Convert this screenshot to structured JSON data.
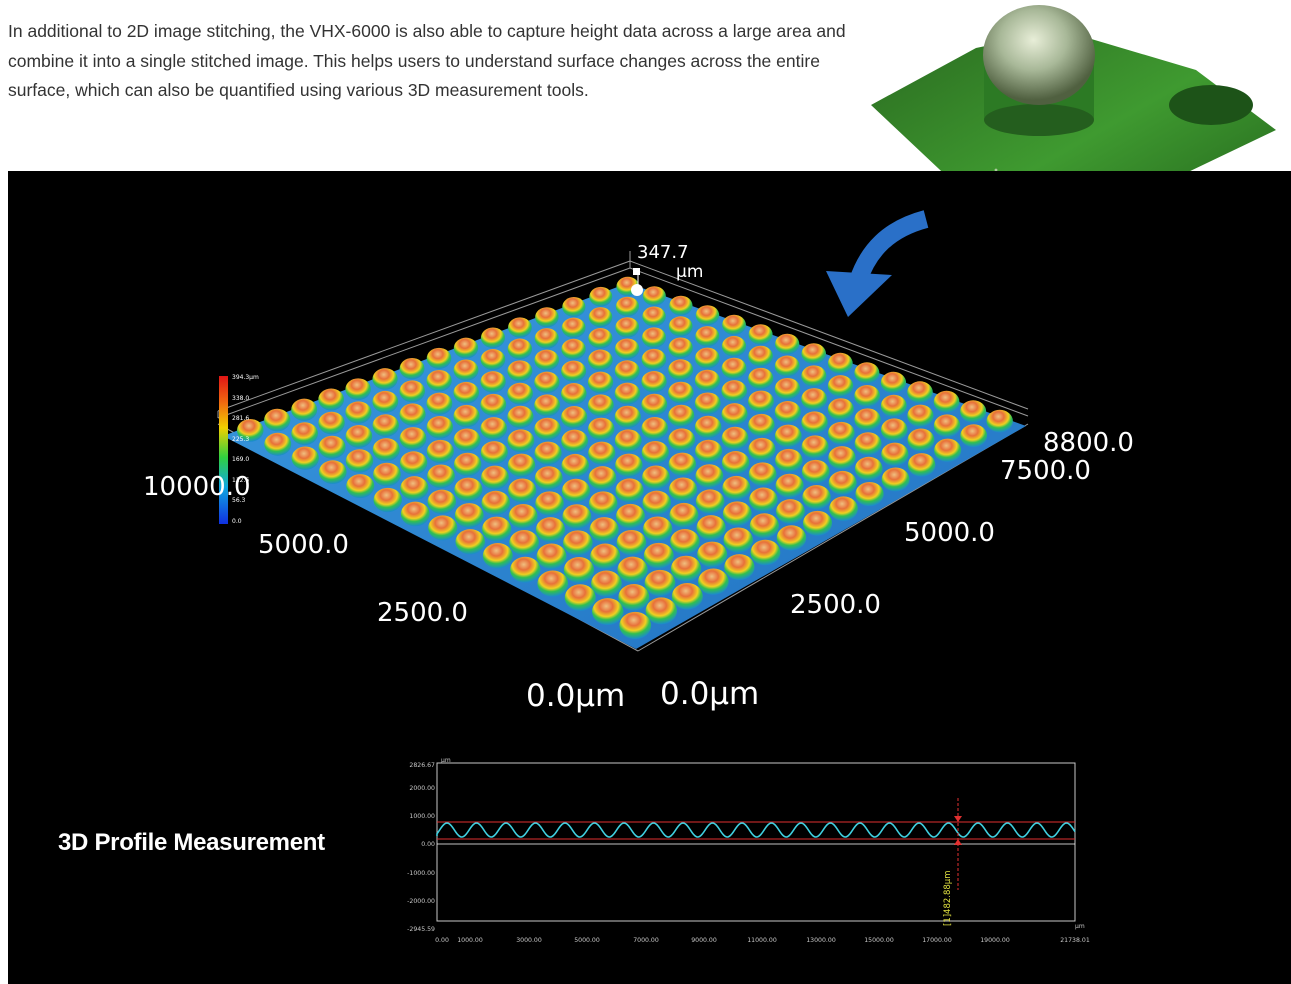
{
  "intro_text": "In additional to 2D image stitching, the VHX-6000 is also able to capture height data across a large area and combine it into a single stitched image. This helps users to understand surface changes across the entire surface, which can also be quantified using various 3D measurement tools.",
  "colorbar": {
    "ticks": [
      "394.3µm",
      "338.0",
      "281.6",
      "225.3",
      "169.0",
      "112.6",
      "56.3",
      "0.0"
    ]
  },
  "peak": {
    "value": "347.7",
    "unit": "µm"
  },
  "axis_labels": {
    "left_y": [
      "10000.0",
      "5000.0",
      "2500.0",
      "0.0µm"
    ],
    "right_x": [
      "8800.0",
      "7500.0",
      "5000.0",
      "2500.0",
      "0.0µm"
    ]
  },
  "profile": {
    "caption": "3D Profile Measurement",
    "y_unit": "µm",
    "x_unit": "µm",
    "y_ticks": [
      "2826.67",
      "2000.00",
      "1000.00",
      "0.00",
      "-1000.00",
      "-2000.00",
      "-2945.59"
    ],
    "x_ticks": [
      "0.00",
      "1000.00",
      "3000.00",
      "5000.00",
      "7000.00",
      "9000.00",
      "11000.00",
      "13000.00",
      "15000.00",
      "17000.00",
      "19000.00",
      "21738.01"
    ],
    "measurement": "[1]482.88µm"
  },
  "colors": {
    "background": "#000000",
    "profile_line": "#40d0e0",
    "marker_line": "#e03030",
    "surface_base": "#2f8fd8"
  }
}
